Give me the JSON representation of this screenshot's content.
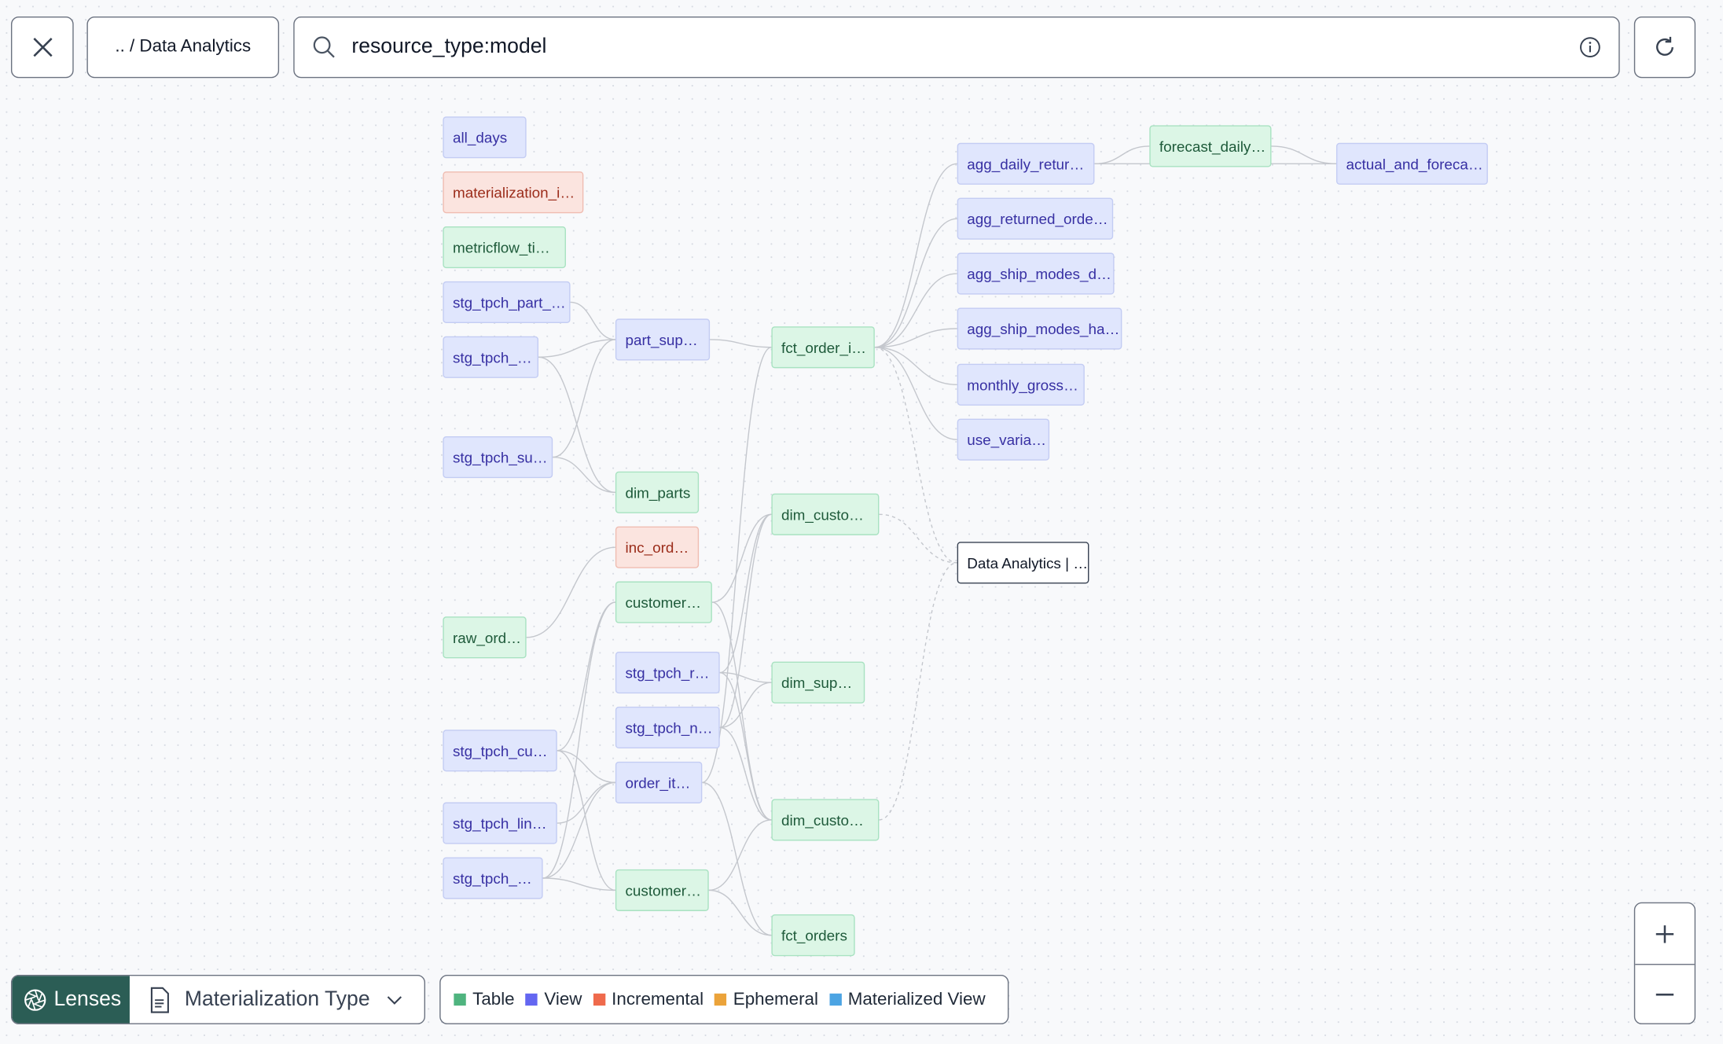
{
  "header": {
    "breadcrumb": ".. / Data Analytics",
    "search_value": "resource_type:model"
  },
  "icons": {
    "close": "close-icon",
    "search": "search-icon",
    "info": "info-icon",
    "refresh": "refresh-icon",
    "lens": "aperture-icon",
    "doc": "document-icon",
    "chevron": "chevron-down-icon",
    "zoom_in": "plus-icon",
    "zoom_out": "minus-icon"
  },
  "lenses": {
    "label": "Lenses",
    "selected": "Materialization Type"
  },
  "legend": [
    {
      "label": "Table",
      "color": "#4fb47f"
    },
    {
      "label": "View",
      "color": "#6366f1"
    },
    {
      "label": "Incremental",
      "color": "#ef6a4c"
    },
    {
      "label": "Ephemeral",
      "color": "#eba33a"
    },
    {
      "label": "Materialized View",
      "color": "#4ca4e3"
    }
  ],
  "nodes": [
    {
      "id": "n1",
      "label": "all_days",
      "type": "view"
    },
    {
      "id": "n2",
      "label": "materialization_i…",
      "type": "incremental"
    },
    {
      "id": "n3",
      "label": "metricflow_ti…",
      "type": "table"
    },
    {
      "id": "n4",
      "label": "stg_tpch_part_…",
      "type": "view"
    },
    {
      "id": "n5",
      "label": "stg_tpch_…",
      "type": "view"
    },
    {
      "id": "n6",
      "label": "stg_tpch_su…",
      "type": "view"
    },
    {
      "id": "n7",
      "label": "raw_ord…",
      "type": "table"
    },
    {
      "id": "n8",
      "label": "stg_tpch_cu…",
      "type": "view"
    },
    {
      "id": "n9",
      "label": "stg_tpch_lin…",
      "type": "view"
    },
    {
      "id": "n10",
      "label": "stg_tpch_…",
      "type": "view"
    },
    {
      "id": "n11",
      "label": "part_sup…",
      "type": "view"
    },
    {
      "id": "n12",
      "label": "dim_parts",
      "type": "table"
    },
    {
      "id": "n13",
      "label": "inc_ord…",
      "type": "incremental"
    },
    {
      "id": "n14",
      "label": "customer…",
      "type": "table"
    },
    {
      "id": "n15",
      "label": "stg_tpch_r…",
      "type": "view"
    },
    {
      "id": "n16",
      "label": "stg_tpch_n…",
      "type": "view"
    },
    {
      "id": "n17",
      "label": "order_it…",
      "type": "view"
    },
    {
      "id": "n18",
      "label": "customer…",
      "type": "table"
    },
    {
      "id": "n19",
      "label": "fct_order_i…",
      "type": "table"
    },
    {
      "id": "n20",
      "label": "dim_custo…",
      "type": "table"
    },
    {
      "id": "n21",
      "label": "dim_sup…",
      "type": "table"
    },
    {
      "id": "n22",
      "label": "dim_custo…",
      "type": "table"
    },
    {
      "id": "n23",
      "label": "fct_orders",
      "type": "table"
    },
    {
      "id": "n24",
      "label": "agg_daily_retur…",
      "type": "view"
    },
    {
      "id": "n25",
      "label": "agg_returned_orde…",
      "type": "view"
    },
    {
      "id": "n26",
      "label": "agg_ship_modes_d…",
      "type": "view"
    },
    {
      "id": "n27",
      "label": "agg_ship_modes_ha…",
      "type": "view"
    },
    {
      "id": "n28",
      "label": "monthly_gross…",
      "type": "view"
    },
    {
      "id": "n29",
      "label": "use_varia…",
      "type": "view"
    },
    {
      "id": "n30",
      "label": "Data Analytics | …",
      "type": "exposure"
    },
    {
      "id": "n31",
      "label": "forecast_daily…",
      "type": "table"
    },
    {
      "id": "n32",
      "label": "actual_and_foreca…",
      "type": "view"
    }
  ],
  "edges": [
    [
      "n4",
      "n11"
    ],
    [
      "n5",
      "n11"
    ],
    [
      "n6",
      "n11"
    ],
    [
      "n5",
      "n12"
    ],
    [
      "n6",
      "n12"
    ],
    [
      "n11",
      "n19"
    ],
    [
      "n17",
      "n19"
    ],
    [
      "n19",
      "n24"
    ],
    [
      "n19",
      "n25"
    ],
    [
      "n19",
      "n26"
    ],
    [
      "n19",
      "n27"
    ],
    [
      "n19",
      "n28"
    ],
    [
      "n19",
      "n29"
    ],
    [
      "n24",
      "n31"
    ],
    [
      "n24",
      "n32"
    ],
    [
      "n31",
      "n32"
    ],
    [
      "n7",
      "n13"
    ],
    [
      "n14",
      "n20"
    ],
    [
      "n15",
      "n20"
    ],
    [
      "n15",
      "n21"
    ],
    [
      "n16",
      "n20"
    ],
    [
      "n16",
      "n21"
    ],
    [
      "n16",
      "n22"
    ],
    [
      "n8",
      "n14"
    ],
    [
      "n8",
      "n18"
    ],
    [
      "n8",
      "n17"
    ],
    [
      "n9",
      "n17"
    ],
    [
      "n10",
      "n17"
    ],
    [
      "n10",
      "n18"
    ],
    [
      "n10",
      "n14"
    ],
    [
      "n18",
      "n22"
    ],
    [
      "n17",
      "n23"
    ],
    [
      "n18",
      "n23"
    ],
    [
      "n14",
      "n22"
    ],
    [
      "n15",
      "n22"
    ],
    [
      "n19",
      "n30",
      "dashed"
    ],
    [
      "n20",
      "n30",
      "dashed"
    ],
    [
      "n22",
      "n30",
      "dashed"
    ]
  ]
}
